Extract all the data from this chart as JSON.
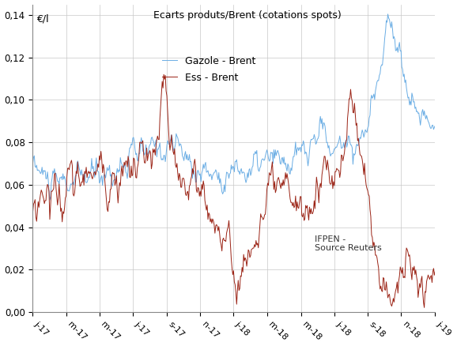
{
  "title": "Ecarts produts/Brent (cotations spots)",
  "ylabel_inside": "€/l",
  "gazole_color": "#6aade4",
  "ess_color": "#9b2315",
  "legend_gazole": "Gazole - Brent",
  "legend_ess": "Ess - Brent",
  "annotation": "IFPEN -\nSource Reuters",
  "ylim": [
    0.0,
    0.145
  ],
  "yticks": [
    0.0,
    0.02,
    0.04,
    0.06,
    0.08,
    0.1,
    0.12,
    0.14
  ],
  "xtick_labels": [
    "j-17",
    "m-17",
    "m-17",
    "j-17",
    "s-17",
    "n-17",
    "j-18",
    "m-18",
    "m-18",
    "j-18",
    "s-18",
    "n-18",
    "j-19"
  ],
  "background_color": "#ffffff",
  "grid_color": "#c8c8c8"
}
